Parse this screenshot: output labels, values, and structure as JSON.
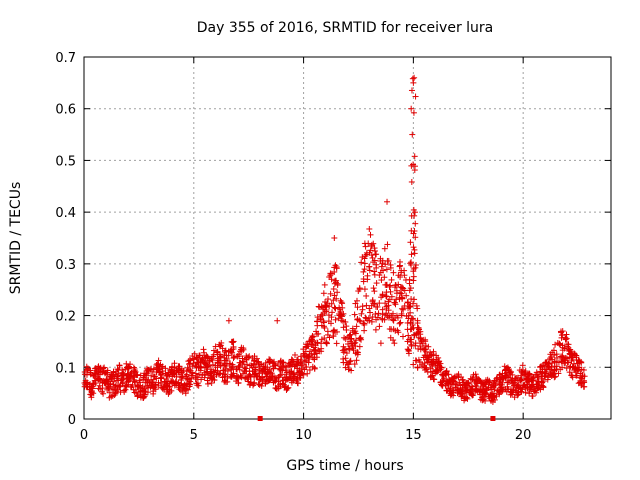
{
  "chart_data": {
    "type": "scatter",
    "title": "Day 355 of 2016, SRMTID for receiver lura",
    "xlabel": "GPS time / hours",
    "ylabel": "SRMTID / TECUs",
    "xlim": [
      0,
      24
    ],
    "ylim": [
      0,
      0.7
    ],
    "xticks": [
      0,
      5,
      10,
      15,
      20
    ],
    "yticks": [
      0,
      0.1,
      0.2,
      0.3,
      0.4,
      0.5,
      0.6,
      0.7
    ],
    "xtick_labels": [
      "0",
      "5",
      "10",
      "15",
      "20"
    ],
    "ytick_labels": [
      "0",
      "0.1",
      "0.2",
      "0.3",
      "0.4",
      "0.5",
      "0.6",
      "0.7"
    ],
    "grid": true,
    "marker": "+",
    "color": "#e00000",
    "series": [
      {
        "name": "SRMTID",
        "x": [
          0.0,
          0.2,
          0.4,
          0.6,
          0.8,
          1.0,
          1.2,
          1.4,
          1.6,
          1.8,
          2.0,
          2.2,
          2.4,
          2.6,
          2.8,
          3.0,
          3.2,
          3.4,
          3.6,
          3.8,
          4.0,
          4.2,
          4.4,
          4.6,
          4.8,
          5.0,
          5.2,
          5.4,
          5.6,
          5.8,
          6.0,
          6.2,
          6.4,
          6.6,
          6.8,
          7.0,
          7.2,
          7.4,
          7.6,
          7.8,
          8.0,
          8.2,
          8.4,
          8.6,
          8.8,
          9.0,
          9.2,
          9.4,
          9.6,
          9.8,
          10.0,
          10.2,
          10.4,
          10.6,
          10.8,
          11.0,
          11.2,
          11.4,
          11.6,
          11.8,
          12.0,
          12.2,
          12.4,
          12.6,
          12.8,
          13.0,
          13.2,
          13.4,
          13.6,
          13.8,
          14.0,
          14.2,
          14.4,
          14.6,
          14.8,
          15.0,
          15.2,
          15.4,
          15.6,
          15.8,
          16.0,
          16.2,
          16.4,
          16.6,
          16.8,
          17.0,
          17.2,
          17.4,
          17.6,
          17.8,
          18.0,
          18.2,
          18.4,
          18.6,
          18.8,
          19.0,
          19.2,
          19.4,
          19.6,
          19.8,
          20.0,
          20.2,
          20.4,
          20.6,
          20.8,
          21.0,
          21.2,
          21.4,
          21.6,
          21.8,
          22.0,
          22.2,
          22.4,
          22.6,
          22.8
        ],
        "y": [
          0.07,
          0.08,
          0.06,
          0.09,
          0.07,
          0.08,
          0.06,
          0.07,
          0.08,
          0.07,
          0.09,
          0.08,
          0.07,
          0.06,
          0.07,
          0.08,
          0.07,
          0.09,
          0.08,
          0.07,
          0.08,
          0.09,
          0.08,
          0.07,
          0.09,
          0.1,
          0.09,
          0.11,
          0.1,
          0.09,
          0.11,
          0.12,
          0.1,
          0.11,
          0.12,
          0.1,
          0.11,
          0.1,
          0.09,
          0.1,
          0.09,
          0.08,
          0.1,
          0.09,
          0.08,
          0.09,
          0.08,
          0.09,
          0.1,
          0.09,
          0.11,
          0.12,
          0.13,
          0.15,
          0.18,
          0.2,
          0.22,
          0.24,
          0.2,
          0.16,
          0.13,
          0.12,
          0.18,
          0.22,
          0.26,
          0.28,
          0.25,
          0.22,
          0.24,
          0.28,
          0.22,
          0.2,
          0.24,
          0.22,
          0.18,
          0.3,
          0.14,
          0.13,
          0.12,
          0.11,
          0.1,
          0.09,
          0.08,
          0.07,
          0.06,
          0.07,
          0.06,
          0.05,
          0.06,
          0.07,
          0.06,
          0.05,
          0.06,
          0.05,
          0.06,
          0.07,
          0.08,
          0.07,
          0.06,
          0.07,
          0.08,
          0.07,
          0.06,
          0.07,
          0.08,
          0.09,
          0.1,
          0.11,
          0.12,
          0.14,
          0.13,
          0.11,
          0.1,
          0.09,
          0.08
        ]
      }
    ],
    "spread": [
      0.025,
      0.025,
      0.025,
      0.025,
      0.025,
      0.025,
      0.025,
      0.025,
      0.025,
      0.025,
      0.025,
      0.025,
      0.025,
      0.025,
      0.025,
      0.025,
      0.025,
      0.025,
      0.025,
      0.025,
      0.025,
      0.025,
      0.025,
      0.025,
      0.03,
      0.03,
      0.03,
      0.03,
      0.03,
      0.03,
      0.035,
      0.035,
      0.035,
      0.035,
      0.035,
      0.035,
      0.03,
      0.03,
      0.03,
      0.03,
      0.025,
      0.025,
      0.025,
      0.025,
      0.025,
      0.025,
      0.025,
      0.025,
      0.025,
      0.025,
      0.03,
      0.035,
      0.04,
      0.05,
      0.06,
      0.07,
      0.08,
      0.08,
      0.07,
      0.05,
      0.04,
      0.04,
      0.07,
      0.08,
      0.09,
      0.09,
      0.09,
      0.08,
      0.09,
      0.09,
      0.08,
      0.07,
      0.07,
      0.07,
      0.06,
      0.25,
      0.04,
      0.035,
      0.03,
      0.03,
      0.025,
      0.025,
      0.02,
      0.02,
      0.02,
      0.02,
      0.02,
      0.02,
      0.02,
      0.02,
      0.02,
      0.02,
      0.02,
      0.02,
      0.02,
      0.02,
      0.025,
      0.025,
      0.02,
      0.025,
      0.025,
      0.025,
      0.02,
      0.02,
      0.025,
      0.025,
      0.025,
      0.03,
      0.035,
      0.04,
      0.035,
      0.03,
      0.025,
      0.025,
      0.02
    ],
    "peaks": [
      {
        "x": 6.6,
        "y": 0.19
      },
      {
        "x": 8.8,
        "y": 0.19
      },
      {
        "x": 11.4,
        "y": 0.35
      },
      {
        "x": 13.8,
        "y": 0.42
      },
      {
        "x": 15.0,
        "y": 0.65
      },
      {
        "x": 14.9,
        "y": 0.6
      },
      {
        "x": 14.95,
        "y": 0.55
      },
      {
        "x": 21.8,
        "y": 0.17
      }
    ],
    "baseline_markers": [
      {
        "x": 8.0,
        "y": 0
      },
      {
        "x": 18.6,
        "y": 0
      }
    ]
  }
}
